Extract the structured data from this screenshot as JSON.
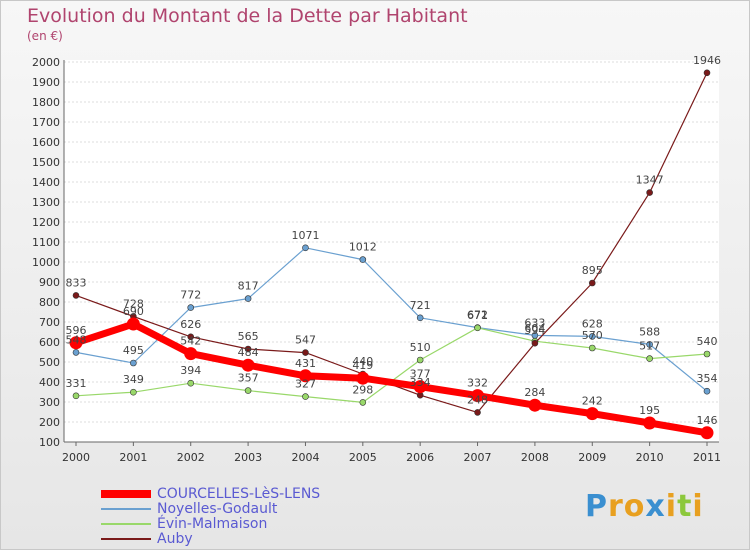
{
  "chart_data": {
    "type": "line",
    "title": "Evolution du Montant de la Dette par Habitant",
    "subtitle": "(en €)",
    "categories": [
      "2000",
      "2001",
      "2002",
      "2003",
      "2004",
      "2005",
      "2006",
      "2007",
      "2008",
      "2009",
      "2010",
      "2011"
    ],
    "ylim": [
      100,
      2000
    ],
    "yticks": [
      100,
      200,
      300,
      400,
      500,
      600,
      700,
      800,
      900,
      1000,
      1100,
      1200,
      1300,
      1400,
      1500,
      1600,
      1700,
      1800,
      1900,
      2000
    ],
    "grid": "horizontal",
    "legend_position": "bottom-left",
    "series": [
      {
        "name": "COURCELLES-LèS-LENS",
        "color": "#ff0000",
        "values": [
          596,
          690,
          542,
          484,
          431,
          419,
          377,
          332,
          284,
          242,
          195,
          146
        ]
      },
      {
        "name": "Noyelles-Godault",
        "color": "#6aa0d0",
        "values": [
          548,
          495,
          772,
          817,
          1071,
          1012,
          721,
          672,
          633,
          628,
          588,
          354
        ]
      },
      {
        "name": "Évin-Malmaison",
        "color": "#99d86a",
        "values": [
          331,
          349,
          394,
          357,
          327,
          298,
          510,
          671,
          604,
          570,
          517,
          540
        ]
      },
      {
        "name": "Auby",
        "color": "#7a1a1a",
        "values": [
          833,
          728,
          626,
          565,
          547,
          440,
          334,
          248,
          594,
          895,
          1347,
          1946
        ]
      }
    ]
  },
  "logo": {
    "letters": [
      "P",
      "r",
      "o",
      "x",
      "i",
      "t",
      "i"
    ],
    "colors": [
      "#3a8fd0",
      "#e8a020",
      "#e8a020",
      "#3a8fd0",
      "#e8a020",
      "#8cc83c",
      "#e8a020"
    ]
  }
}
